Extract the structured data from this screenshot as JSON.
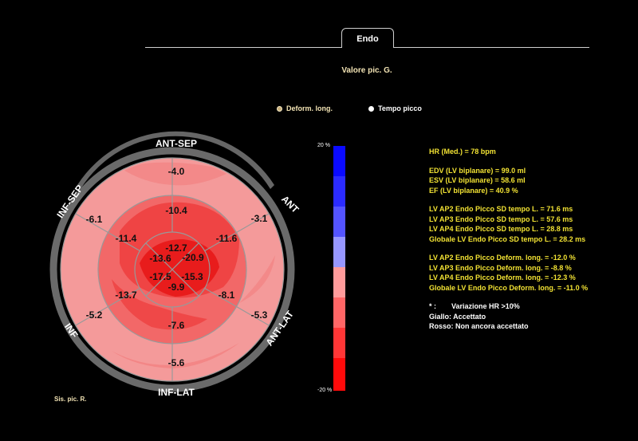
{
  "tab": {
    "label": "Endo"
  },
  "mode_title": "Valore pic. G.",
  "options": {
    "deform": "Deform. long.",
    "tempo": "Tempo picco"
  },
  "walls": {
    "ant_sep": "ANT-SEP",
    "ant": "ANT",
    "ant_lat": "ANT-LAT",
    "inf_lat": "INF-LAT",
    "inf": "INF",
    "inf_sep": "INF-SEP"
  },
  "segments": {
    "basal": {
      "ant_sep": "-4.0",
      "ant": "-3.1",
      "ant_lat": "-5.3",
      "inf_lat": "-5.6",
      "inf": "-5.2",
      "inf_sep": "-6.1"
    },
    "mid": {
      "ant_sep": "-10.4",
      "ant": "-11.6",
      "ant_lat": "-8.1",
      "inf_lat": "-7.6",
      "inf": "-13.7",
      "inf_sep": "-11.4"
    },
    "apical": {
      "ant": "-12.7",
      "lat": "-20.9",
      "inf": "-15.3",
      "sep": "-13.6",
      "ant_lower": "-17.5"
    },
    "apex": "-9.9"
  },
  "scale": {
    "top": "20 %",
    "bottom": "-20 %"
  },
  "measurements": {
    "hr": "HR (Med.) = 78 bpm",
    "edv": "EDV (LV biplanare) = 99.0 ml",
    "esv": "ESV (LV biplanare) = 58.6 ml",
    "ef": "EF (LV biplanare) = 40.9 %",
    "sd_ap2": "LV AP2 Endo Picco SD tempo L. = 71.6 ms",
    "sd_ap3": "LV AP3 Endo Picco SD tempo L. = 57.6 ms",
    "sd_ap4": "LV AP4 Endo Picco SD tempo L. = 28.8 ms",
    "sd_global": "Globale LV Endo Picco SD tempo L. = 28.2 ms",
    "def_ap2": "LV AP2 Endo Picco Deform. long. = -12.0 %",
    "def_ap3": "LV AP3 Endo Picco Deform. long. = -8.8 %",
    "def_ap4": "LV AP4 Endo Picco Deform. long. = -12.3 %",
    "def_global": "Globale LV Endo Picco Deform. long. = -11.0 %"
  },
  "legend": {
    "star": "* :",
    "star_text": "Variazione HR >10%",
    "yellow": "Giallo: Accettato",
    "red": "Rosso: Non ancora accettato"
  },
  "footer": "Sis. pic. R.",
  "colors": {
    "basal_ring": "#f49a9a",
    "mid_ring": "#f25b5b",
    "apical_ring": "#e22020",
    "wall_ring": "#666666",
    "accent_text": "#f2e233"
  }
}
